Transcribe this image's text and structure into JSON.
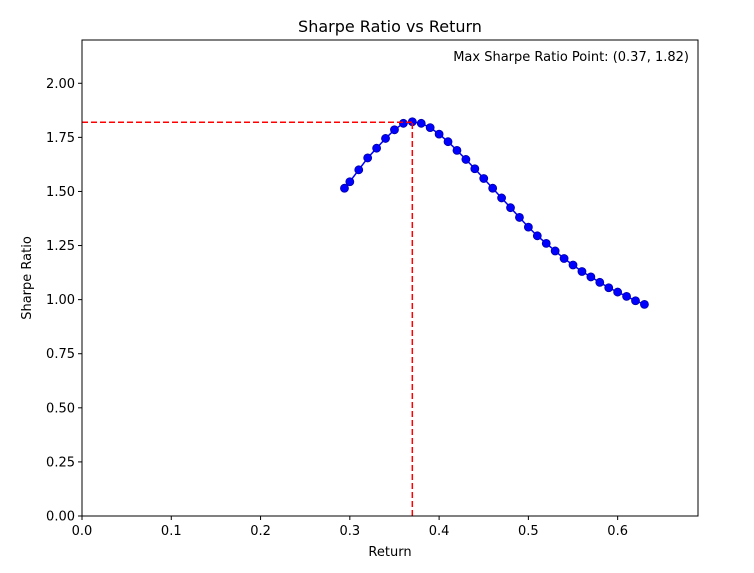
{
  "chart_data": {
    "type": "line",
    "title": "Sharpe Ratio vs Return",
    "xlabel": "Return",
    "ylabel": "Sharpe Ratio",
    "xlim": [
      0.0,
      0.69
    ],
    "ylim": [
      0.0,
      2.2
    ],
    "x_ticks": [
      "0.0",
      "0.1",
      "0.2",
      "0.3",
      "0.4",
      "0.5",
      "0.6"
    ],
    "y_ticks": [
      "0.00",
      "0.25",
      "0.50",
      "0.75",
      "1.00",
      "1.25",
      "1.50",
      "1.75",
      "2.00"
    ],
    "grid": false,
    "series": [
      {
        "color": "#0000ff",
        "marker": "circle",
        "x": [
          0.294,
          0.3,
          0.31,
          0.32,
          0.33,
          0.34,
          0.35,
          0.36,
          0.37,
          0.38,
          0.39,
          0.4,
          0.41,
          0.42,
          0.43,
          0.44,
          0.45,
          0.46,
          0.47,
          0.48,
          0.49,
          0.5,
          0.51,
          0.52,
          0.53,
          0.54,
          0.55,
          0.56,
          0.57,
          0.58,
          0.59,
          0.6,
          0.61,
          0.62,
          0.63
        ],
        "y": [
          1.515,
          1.545,
          1.6,
          1.655,
          1.7,
          1.745,
          1.785,
          1.815,
          1.822,
          1.815,
          1.795,
          1.765,
          1.73,
          1.69,
          1.648,
          1.605,
          1.56,
          1.515,
          1.47,
          1.425,
          1.38,
          1.335,
          1.295,
          1.26,
          1.225,
          1.19,
          1.16,
          1.13,
          1.105,
          1.08,
          1.055,
          1.035,
          1.015,
          0.995,
          0.978
        ]
      }
    ],
    "max_point": {
      "x": 0.37,
      "y": 1.82,
      "line_color": "#ff0000"
    },
    "annotation": "Max Sharpe Ratio Point: (0.37, 1.82)"
  }
}
